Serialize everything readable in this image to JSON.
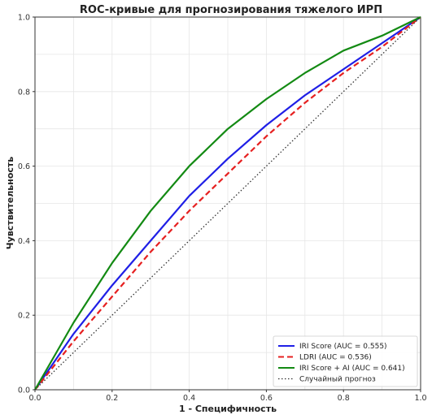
{
  "chart_data": {
    "type": "line",
    "title": "ROC-кривые для прогнозирования тяжелого ИРП",
    "xlabel": "1 - Специфичность",
    "ylabel": "Чувствительность",
    "xlim": [
      0.0,
      1.0
    ],
    "ylim": [
      0.0,
      1.0
    ],
    "xticks": [
      "0.0",
      "0.2",
      "0.4",
      "0.6",
      "0.8",
      "1.0"
    ],
    "yticks": [
      "0.0",
      "0.2",
      "0.4",
      "0.6",
      "0.8",
      "1.0"
    ],
    "grid": true,
    "legend_position": "bottom-right",
    "series": [
      {
        "name": "IRI Score (AUC = 0.555)",
        "color": "#1f1fe6",
        "style": "solid",
        "x": [
          0.0,
          0.1,
          0.2,
          0.3,
          0.4,
          0.5,
          0.6,
          0.7,
          0.8,
          0.9,
          1.0
        ],
        "y": [
          0.0,
          0.15,
          0.28,
          0.4,
          0.52,
          0.62,
          0.71,
          0.79,
          0.86,
          0.93,
          1.0
        ]
      },
      {
        "name": "LDRI (AUC = 0.536)",
        "color": "#e62020",
        "style": "dashed",
        "x": [
          0.0,
          0.1,
          0.2,
          0.3,
          0.4,
          0.5,
          0.6,
          0.7,
          0.8,
          0.9,
          1.0
        ],
        "y": [
          0.0,
          0.13,
          0.25,
          0.37,
          0.48,
          0.58,
          0.68,
          0.77,
          0.85,
          0.92,
          1.0
        ]
      },
      {
        "name": "IRI Score + AI (AUC = 0.641)",
        "color": "#138a13",
        "style": "solid",
        "x": [
          0.0,
          0.1,
          0.2,
          0.3,
          0.4,
          0.5,
          0.6,
          0.7,
          0.8,
          0.9,
          1.0
        ],
        "y": [
          0.0,
          0.18,
          0.34,
          0.48,
          0.6,
          0.7,
          0.78,
          0.85,
          0.91,
          0.95,
          1.0
        ]
      },
      {
        "name": "Случайный прогноз",
        "color": "#333333",
        "style": "dotted",
        "x": [
          0.0,
          1.0
        ],
        "y": [
          0.0,
          1.0
        ]
      }
    ]
  }
}
